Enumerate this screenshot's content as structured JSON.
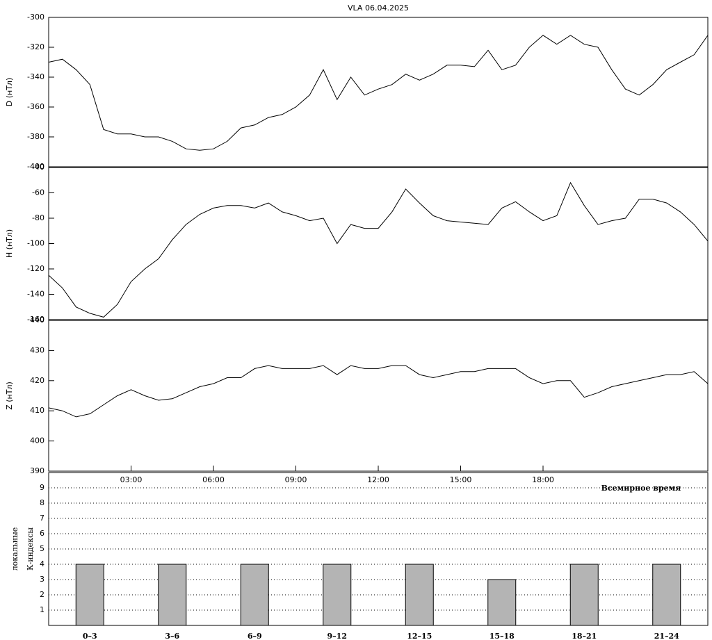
{
  "chart_data": [
    {
      "type": "line",
      "title": "VLA   06.04.2025",
      "y_label": "D (нТл)",
      "color": "#000000",
      "x": [
        0,
        0.5,
        1,
        1.5,
        2,
        2.5,
        3,
        3.5,
        4,
        4.5,
        5,
        5.5,
        6,
        6.5,
        7,
        7.5,
        8,
        8.5,
        9,
        9.5,
        10,
        10.5,
        11,
        11.5,
        12,
        12.5,
        13,
        13.5,
        14,
        14.5,
        15,
        15.5,
        16,
        16.5,
        17,
        17.5,
        18,
        18.5,
        19,
        19.5,
        20,
        20.5,
        21,
        21.5,
        22,
        22.5,
        23,
        23.5,
        24
      ],
      "values": [
        -330,
        -328,
        -335,
        -345,
        -375,
        -378,
        -378,
        -380,
        -380,
        -383,
        -388,
        -389,
        -388,
        -383,
        -374,
        -372,
        -367,
        -365,
        -360,
        -352,
        -335,
        -355,
        -340,
        -352,
        -348,
        -345,
        -338,
        -342,
        -338,
        -332,
        -332,
        -333,
        -322,
        -335,
        -332,
        -320,
        -312,
        -318,
        -312,
        -318,
        -320,
        -335,
        -348,
        -352,
        -345,
        -335,
        -330,
        -325,
        -312
      ],
      "xlim": [
        0,
        24
      ],
      "ylim": [
        -400,
        -300
      ],
      "yticks": [
        -400,
        -380,
        -360,
        -340,
        -320,
        -300
      ]
    },
    {
      "type": "line",
      "y_label": "H (нТл)",
      "color": "#000000",
      "x": [
        0,
        0.5,
        1,
        1.5,
        2,
        2.5,
        3,
        3.5,
        4,
        4.5,
        5,
        5.5,
        6,
        6.5,
        7,
        7.5,
        8,
        8.5,
        9,
        9.5,
        10,
        10.5,
        11,
        11.5,
        12,
        12.5,
        13,
        13.5,
        14,
        14.5,
        15,
        15.5,
        16,
        16.5,
        17,
        17.5,
        18,
        18.5,
        19,
        19.5,
        20,
        20.5,
        21,
        21.5,
        22,
        22.5,
        23,
        23.5,
        24
      ],
      "values": [
        -125,
        -135,
        -150,
        -155,
        -158,
        -148,
        -130,
        -120,
        -112,
        -97,
        -85,
        -77,
        -72,
        -70,
        -70,
        -72,
        -68,
        -75,
        -78,
        -82,
        -80,
        -100,
        -85,
        -88,
        -88,
        -75,
        -57,
        -68,
        -78,
        -82,
        -83,
        -84,
        -85,
        -72,
        -67,
        -75,
        -82,
        -78,
        -52,
        -70,
        -85,
        -82,
        -80,
        -65,
        -65,
        -68,
        -75,
        -85,
        -98
      ],
      "xlim": [
        0,
        24
      ],
      "ylim": [
        -160,
        -40
      ],
      "yticks": [
        -160,
        -140,
        -120,
        -100,
        -80,
        -60,
        -40
      ]
    },
    {
      "type": "line",
      "y_label": "Z (нТл)",
      "x_label": "Всемирное время",
      "color": "#000000",
      "x": [
        0,
        0.5,
        1,
        1.5,
        2,
        2.5,
        3,
        3.5,
        4,
        4.5,
        5,
        5.5,
        6,
        6.5,
        7,
        7.5,
        8,
        8.5,
        9,
        9.5,
        10,
        10.5,
        11,
        11.5,
        12,
        12.5,
        13,
        13.5,
        14,
        14.5,
        15,
        15.5,
        16,
        16.5,
        17,
        17.5,
        18,
        18.5,
        19,
        19.5,
        20,
        20.5,
        21,
        21.5,
        22,
        22.5,
        23,
        23.5,
        24
      ],
      "values": [
        411,
        410,
        408,
        409,
        412,
        415,
        417,
        415,
        413.5,
        414,
        416,
        418,
        419,
        421,
        421,
        424,
        425,
        424,
        424,
        424,
        425,
        422,
        425,
        424,
        424,
        425,
        425,
        422,
        421,
        422,
        423,
        423,
        424,
        424,
        424,
        421,
        419,
        420,
        420,
        414.5,
        416,
        418,
        419,
        420,
        421,
        422,
        422,
        423,
        419
      ],
      "xlim": [
        0,
        24
      ],
      "ylim": [
        390,
        440
      ],
      "yticks": [
        390,
        400,
        410,
        420,
        430,
        440
      ],
      "xticks": [
        {
          "value": 3,
          "label": "03:00"
        },
        {
          "value": 6,
          "label": "06:00"
        },
        {
          "value": 9,
          "label": "09:00"
        },
        {
          "value": 12,
          "label": "12:00"
        },
        {
          "value": 15,
          "label": "15:00"
        },
        {
          "value": 18,
          "label": "18:00"
        }
      ]
    },
    {
      "type": "bar",
      "y_label": [
        "локальные",
        "К-индексы"
      ],
      "color": "#b4b4b4",
      "grid": true,
      "categories": [
        "0–3",
        "3–6",
        "6–9",
        "9–12",
        "12–15",
        "15–18",
        "18–21",
        "21–24"
      ],
      "values": [
        4,
        4,
        4,
        4,
        4,
        3,
        4,
        4
      ],
      "ylim": [
        0,
        10
      ],
      "yticks": [
        1,
        2,
        3,
        4,
        5,
        6,
        7,
        8,
        9
      ]
    }
  ]
}
